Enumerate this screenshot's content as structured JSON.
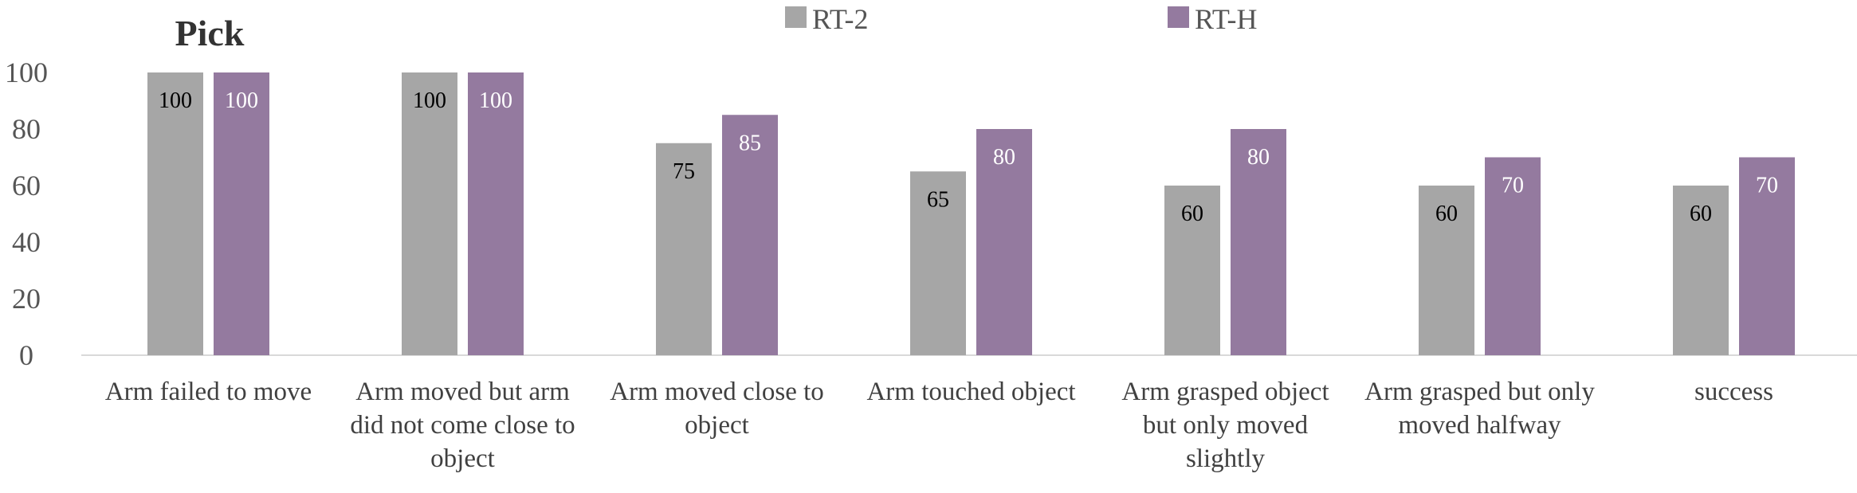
{
  "chart_data": {
    "type": "bar",
    "title": "Pick",
    "categories": [
      [
        "Arm failed to move"
      ],
      [
        "Arm moved but arm",
        "did not come close to",
        "object"
      ],
      [
        "Arm moved close to",
        "object"
      ],
      [
        "Arm touched object"
      ],
      [
        "Arm grasped object",
        "but only moved",
        "slightly"
      ],
      [
        "Arm grasped but only",
        "moved halfway"
      ],
      [
        "success"
      ]
    ],
    "series": [
      {
        "name": "RT-2",
        "color": "#a6a6a6",
        "label_color": "#000000",
        "values": [
          100,
          100,
          75,
          65,
          60,
          60,
          60
        ]
      },
      {
        "name": "RT-H",
        "color": "#947a9f",
        "label_color": "#ffffff",
        "values": [
          100,
          100,
          85,
          80,
          80,
          70,
          70
        ]
      }
    ],
    "yticks": [
      "0",
      "20",
      "40",
      "60",
      "80",
      "100"
    ],
    "ylim": [
      0,
      100
    ],
    "legend_position": "top-center",
    "grid": false
  }
}
